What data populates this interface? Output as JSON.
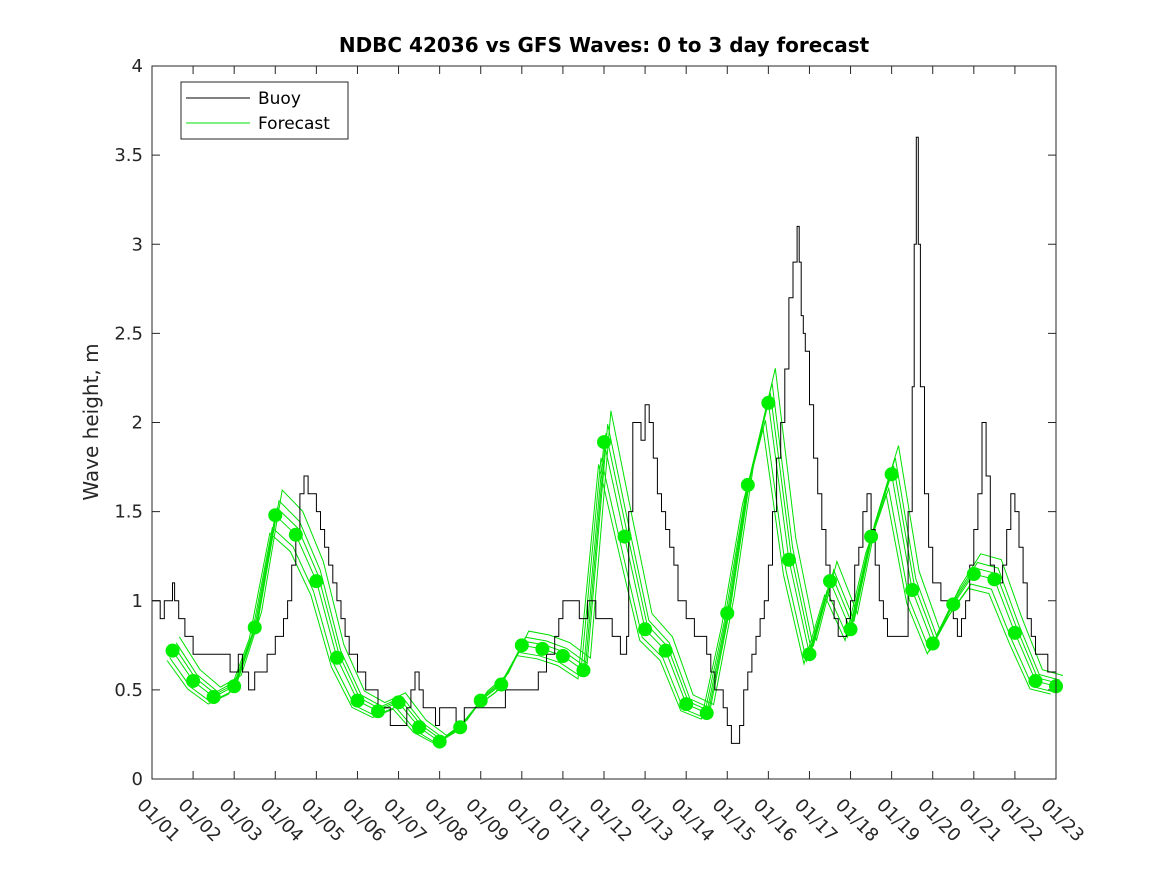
{
  "chart_data": {
    "type": "line",
    "title": "NDBC 42036 vs GFS Waves: 0 to 3 day forecast",
    "xlabel": "",
    "ylabel": "Wave height, m",
    "xlim": [
      0,
      22
    ],
    "ylim": [
      0,
      4
    ],
    "yticks": [
      0,
      0.5,
      1,
      1.5,
      2,
      2.5,
      3,
      3.5,
      4
    ],
    "ytick_labels": [
      "0",
      "0.5",
      "1",
      "1.5",
      "2",
      "2.5",
      "3",
      "3.5",
      "4"
    ],
    "xtick_labels": [
      "01/01",
      "01/02",
      "01/03",
      "01/04",
      "01/05",
      "01/06",
      "01/07",
      "01/08",
      "01/09",
      "01/10",
      "01/11",
      "01/12",
      "01/13",
      "01/14",
      "01/15",
      "01/16",
      "01/17",
      "01/18",
      "01/19",
      "01/20",
      "01/21",
      "01/22",
      "01/23"
    ],
    "legend": {
      "position": "top-left",
      "entries": [
        {
          "label": "Buoy",
          "color": "#000000"
        },
        {
          "label": "Forecast",
          "color": "#00e000"
        }
      ]
    },
    "series": [
      {
        "name": "Buoy",
        "color": "#000000",
        "x": [
          0,
          0.2,
          0.3,
          0.4,
          0.5,
          0.55,
          0.65,
          0.7,
          0.8,
          0.9,
          1.0,
          1.2,
          1.5,
          1.7,
          1.9,
          2.1,
          2.2,
          2.35,
          2.4,
          2.5,
          2.6,
          2.7,
          2.8,
          2.9,
          3.0,
          3.1,
          3.2,
          3.3,
          3.4,
          3.5,
          3.6,
          3.7,
          3.8,
          3.9,
          4.0,
          4.1,
          4.2,
          4.3,
          4.4,
          4.5,
          4.6,
          4.7,
          4.8,
          4.9,
          5.0,
          5.1,
          5.2,
          5.3,
          5.4,
          5.5,
          5.6,
          5.7,
          5.8,
          5.9,
          6.0,
          6.1,
          6.2,
          6.3,
          6.4,
          6.5,
          6.6,
          6.7,
          6.8,
          6.9,
          7.0,
          7.2,
          7.4,
          7.6,
          7.8,
          8.0,
          8.2,
          8.4,
          8.6,
          8.8,
          9.0,
          9.2,
          9.4,
          9.6,
          9.8,
          9.9,
          10.0,
          10.2,
          10.4,
          10.6,
          10.8,
          11.0,
          11.2,
          11.4,
          11.5,
          11.55,
          11.6,
          11.7,
          11.8,
          11.9,
          12.0,
          12.1,
          12.2,
          12.3,
          12.4,
          12.5,
          12.6,
          12.7,
          12.8,
          12.9,
          13.0,
          13.1,
          13.2,
          13.3,
          13.4,
          13.5,
          13.6,
          13.7,
          13.8,
          13.9,
          14.0,
          14.1,
          14.2,
          14.3,
          14.4,
          14.5,
          14.6,
          14.7,
          14.8,
          14.9,
          15.0,
          15.1,
          15.2,
          15.3,
          15.4,
          15.5,
          15.6,
          15.7,
          15.75,
          15.8,
          15.85,
          15.9,
          16.0,
          16.1,
          16.2,
          16.3,
          16.4,
          16.5,
          16.6,
          16.7,
          16.8,
          16.9,
          17.0,
          17.1,
          17.2,
          17.3,
          17.4,
          17.5,
          17.6,
          17.7,
          17.8,
          17.9,
          18.0,
          18.1,
          18.2,
          18.3,
          18.4,
          18.5,
          18.55,
          18.6,
          18.65,
          18.7,
          18.8,
          18.9,
          19.0,
          19.1,
          19.2,
          19.3,
          19.4,
          19.5,
          19.6,
          19.7,
          19.8,
          19.9,
          20.0,
          20.1,
          20.2,
          20.3,
          20.4,
          20.5,
          20.6,
          20.7,
          20.8,
          20.9,
          21.0,
          21.1,
          21.2,
          21.3,
          21.4,
          21.5,
          21.6,
          21.7,
          21.8,
          21.9,
          22.0
        ],
        "values": [
          1.0,
          0.9,
          1.0,
          1.0,
          1.1,
          1.0,
          0.9,
          0.9,
          0.8,
          0.8,
          0.7,
          0.7,
          0.7,
          0.7,
          0.6,
          0.7,
          0.6,
          0.5,
          0.5,
          0.6,
          0.6,
          0.6,
          0.7,
          0.7,
          0.8,
          0.8,
          0.9,
          1.0,
          1.2,
          1.4,
          1.6,
          1.7,
          1.6,
          1.6,
          1.5,
          1.4,
          1.3,
          1.2,
          1.1,
          1.0,
          0.9,
          0.8,
          0.7,
          0.7,
          0.6,
          0.6,
          0.5,
          0.5,
          0.5,
          0.4,
          0.4,
          0.4,
          0.3,
          0.3,
          0.3,
          0.3,
          0.4,
          0.5,
          0.6,
          0.5,
          0.4,
          0.4,
          0.4,
          0.3,
          0.4,
          0.4,
          0.3,
          0.4,
          0.4,
          0.4,
          0.4,
          0.4,
          0.5,
          0.5,
          0.5,
          0.5,
          0.6,
          0.7,
          0.8,
          0.9,
          1.0,
          1.0,
          0.9,
          1.0,
          0.9,
          0.9,
          0.8,
          0.7,
          0.7,
          0.8,
          1.5,
          2.0,
          2.0,
          1.9,
          2.1,
          2.0,
          1.8,
          1.6,
          1.5,
          1.4,
          1.3,
          1.2,
          1.0,
          1.0,
          0.9,
          0.9,
          0.8,
          0.8,
          0.8,
          0.7,
          0.6,
          0.5,
          0.5,
          0.4,
          0.3,
          0.2,
          0.2,
          0.3,
          0.5,
          0.6,
          0.7,
          0.8,
          0.9,
          1.0,
          1.2,
          1.5,
          1.8,
          2.0,
          2.3,
          2.7,
          2.9,
          3.1,
          2.9,
          2.6,
          2.5,
          2.4,
          2.1,
          1.8,
          1.6,
          1.4,
          1.2,
          1.0,
          0.9,
          0.8,
          0.8,
          0.9,
          1.0,
          1.2,
          1.3,
          1.5,
          1.6,
          1.4,
          1.2,
          1.0,
          0.9,
          0.8,
          0.8,
          0.8,
          0.8,
          0.8,
          1.5,
          2.2,
          3.0,
          3.6,
          3.0,
          2.2,
          1.6,
          1.3,
          1.1,
          1.1,
          1.0,
          1.0,
          1.0,
          0.9,
          0.8,
          0.9,
          1.0,
          1.2,
          1.4,
          1.6,
          2.0,
          1.7,
          1.2,
          1.1,
          1.1,
          1.2,
          1.4,
          1.6,
          1.5,
          1.3,
          1.1,
          0.9,
          0.8,
          0.7,
          0.7,
          0.7,
          0.6,
          0.6,
          0.5
        ]
      },
      {
        "name": "Forecast",
        "color": "#00e000",
        "x": [
          0.5,
          1.0,
          1.5,
          2.0,
          2.5,
          3.0,
          3.5,
          4.0,
          4.5,
          5.0,
          5.5,
          6.0,
          6.5,
          7.0,
          7.5,
          8.0,
          8.5,
          9.0,
          9.5,
          10.0,
          10.5,
          11.0,
          11.5,
          12.0,
          12.5,
          13.0,
          13.5,
          14.0,
          14.5,
          15.0,
          15.5,
          16.0,
          16.5,
          17.0,
          17.5,
          18.0,
          18.5,
          19.0,
          19.5,
          20.0,
          20.5,
          21.0,
          21.5,
          22.0
        ],
        "values": [
          0.72,
          0.55,
          0.46,
          0.52,
          0.85,
          1.48,
          1.37,
          1.11,
          0.68,
          0.44,
          0.38,
          0.43,
          0.29,
          0.21,
          0.29,
          0.44,
          0.53,
          0.75,
          0.73,
          0.69,
          0.61,
          1.89,
          1.36,
          0.84,
          0.72,
          0.42,
          0.37,
          0.93,
          1.65,
          2.11,
          1.23,
          0.7,
          1.11,
          0.84,
          1.36,
          1.71,
          1.06,
          0.76,
          0.98,
          1.15,
          1.12,
          0.82,
          0.55,
          0.52
        ]
      }
    ]
  }
}
